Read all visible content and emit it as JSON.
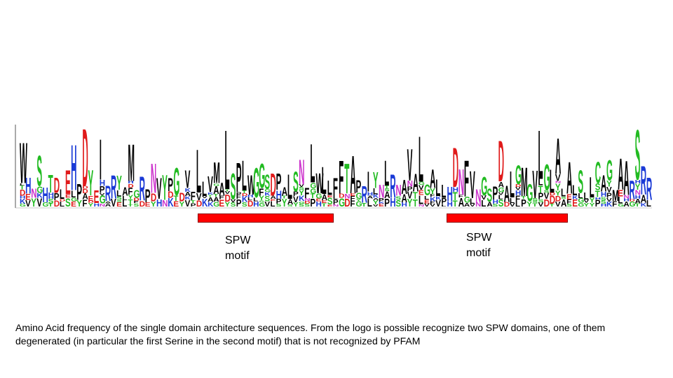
{
  "logo": {
    "colors": {
      "black": "#000000",
      "green": "#22bb22",
      "blue": "#1a3ad6",
      "red": "#e01a1a",
      "magenta": "#cc33cc"
    },
    "sequence": "WHNSHTDLEHPDYEIRRYAMGRPNVYPGDVFLLVMALSPLWGGSDPALSNFLWLLFFTAPRIYNLRNAVALGALLHDNFVNGSPDALGMGVLGLALALSLLCAGMAARSRR"
  },
  "annotations": {
    "color": "#ff0000",
    "motifs": [
      {
        "label": "SPW\nmotif"
      },
      {
        "label": "SPW\nmotif"
      }
    ]
  },
  "caption": "Amino Acid frequency of the single domain architecture sequences. From the logo is possible recognize two SPW domains, one of them degenerated (in particular the first Serine in the second motif) that is not recognized by PFAM"
}
